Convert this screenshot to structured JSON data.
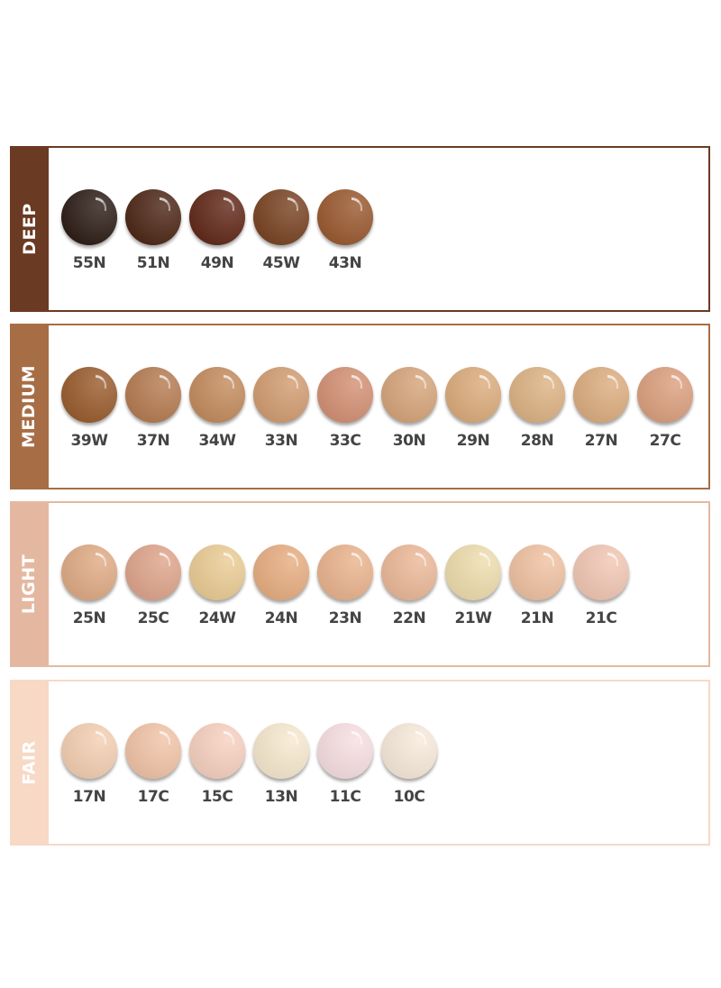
{
  "groups": [
    {
      "name": "DEEP",
      "color": "#6b3a22",
      "shades": [
        {
          "code": "55N",
          "color": "#2e1e17"
        },
        {
          "code": "51N",
          "color": "#4e2818"
        },
        {
          "code": "49N",
          "color": "#62291a"
        },
        {
          "code": "45W",
          "color": "#7a4424"
        },
        {
          "code": "43N",
          "color": "#9a5a30"
        }
      ]
    },
    {
      "name": "MEDIUM",
      "color": "#a76d45",
      "shades": [
        {
          "code": "39W",
          "color": "#9a5d2f"
        },
        {
          "code": "37N",
          "color": "#b67c52"
        },
        {
          "code": "34W",
          "color": "#c48c5e"
        },
        {
          "code": "33N",
          "color": "#d29d72"
        },
        {
          "code": "33C",
          "color": "#d49175"
        },
        {
          "code": "30N",
          "color": "#d6a57b"
        },
        {
          "code": "29N",
          "color": "#dcac7c"
        },
        {
          "code": "28N",
          "color": "#ddb384"
        },
        {
          "code": "27N",
          "color": "#dcae80"
        },
        {
          "code": "27C",
          "color": "#dca07f"
        }
      ]
    },
    {
      "name": "LIGHT",
      "color": "#e4b8a0",
      "shades": [
        {
          "code": "25N",
          "color": "#e0ab85"
        },
        {
          "code": "25C",
          "color": "#dfa58c"
        },
        {
          "code": "24W",
          "color": "#ebcc95"
        },
        {
          "code": "24N",
          "color": "#e7ae82"
        },
        {
          "code": "23N",
          "color": "#eab48e"
        },
        {
          "code": "22N",
          "color": "#ecb999"
        },
        {
          "code": "21W",
          "color": "#eeddae"
        },
        {
          "code": "21N",
          "color": "#f0c2a2"
        },
        {
          "code": "21C",
          "color": "#f2c7b4"
        }
      ]
    },
    {
      "name": "FAIR",
      "color": "#f7d9c6",
      "shades": [
        {
          "code": "17N",
          "color": "#f4cfb2"
        },
        {
          "code": "17C",
          "color": "#f1c4a7"
        },
        {
          "code": "15C",
          "color": "#f7d1c0"
        },
        {
          "code": "13N",
          "color": "#f7e9cf"
        },
        {
          "code": "11C",
          "color": "#f7dfe2"
        },
        {
          "code": "10C",
          "color": "#f8eadb"
        }
      ]
    }
  ]
}
